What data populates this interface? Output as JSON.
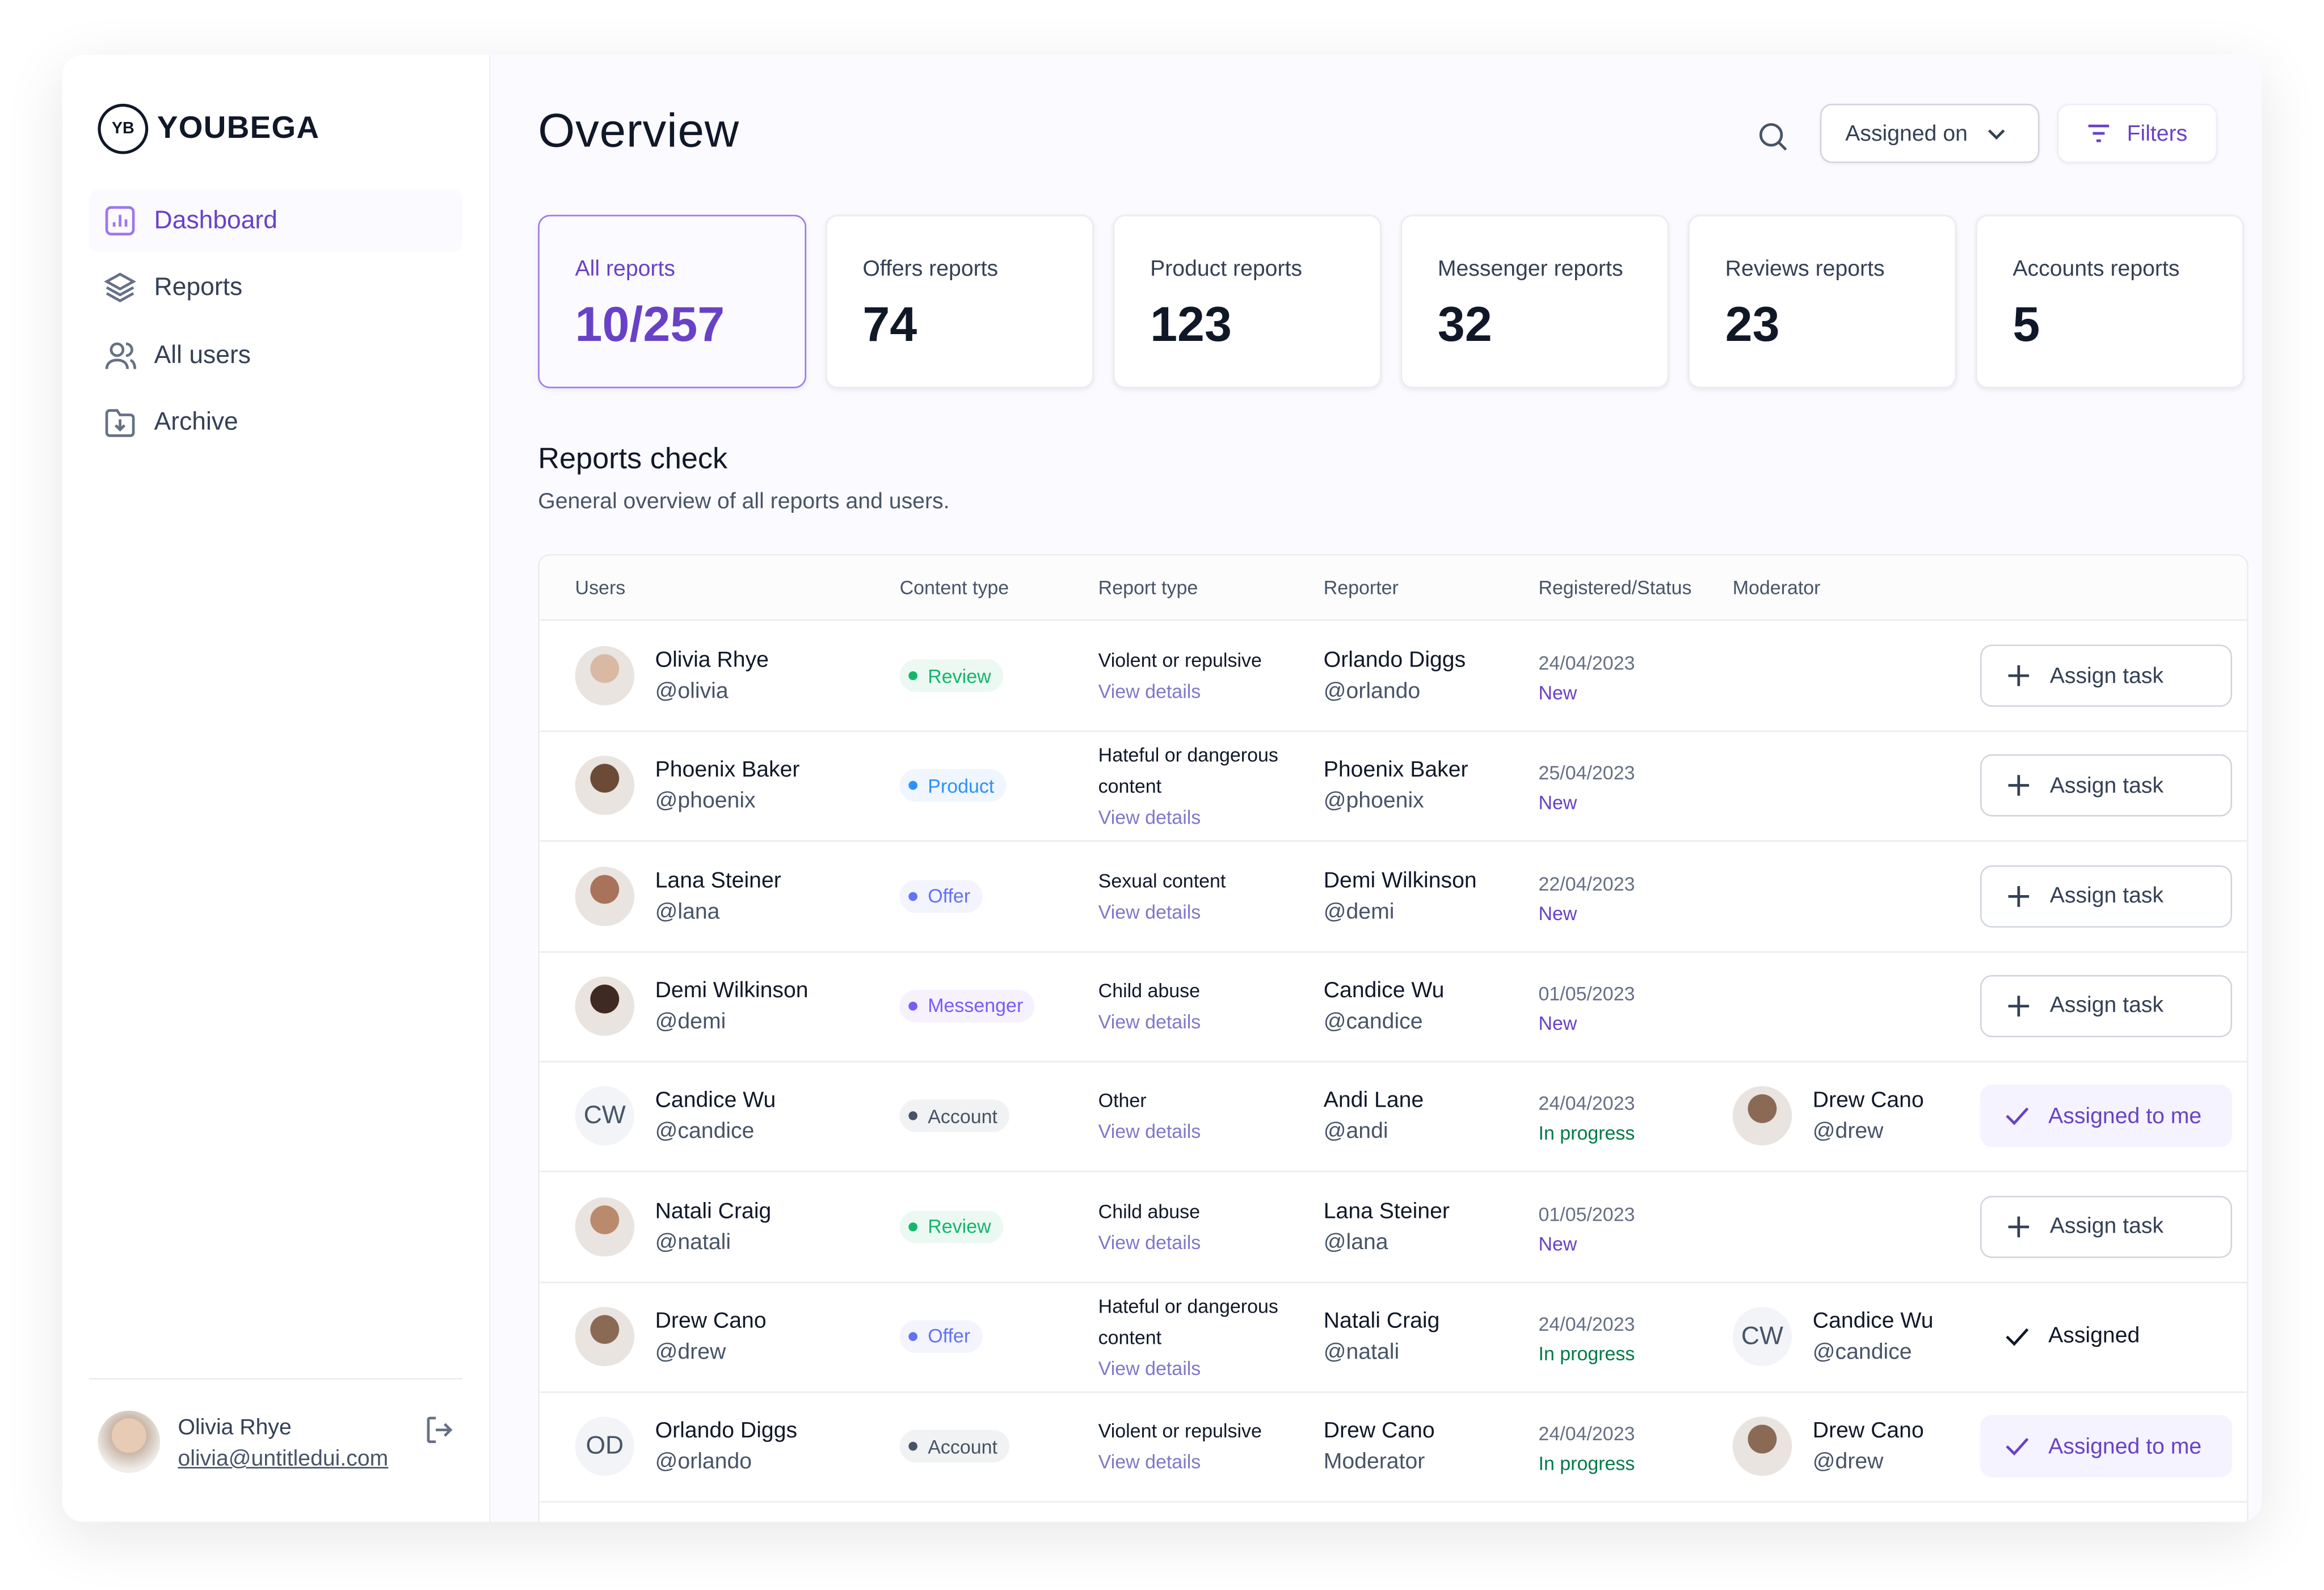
{
  "brand": {
    "logo": "YB",
    "name": "YOUBEGA"
  },
  "nav": [
    "Dashboard",
    "Reports",
    "All users",
    "Archive"
  ],
  "user": {
    "name": "Olivia Rhye",
    "email": "olivia@untitledui.com"
  },
  "header": {
    "title": "Overview",
    "sort": "Assigned on",
    "filters": "Filters"
  },
  "stats": [
    {
      "label": "All reports",
      "value": "10/257"
    },
    {
      "label": "Offers reports",
      "value": "74"
    },
    {
      "label": "Product reports",
      "value": "123"
    },
    {
      "label": "Messenger reports",
      "value": "32"
    },
    {
      "label": "Reviews reports",
      "value": "23"
    },
    {
      "label": "Accounts reports",
      "value": "5"
    }
  ],
  "section": {
    "title": "Reports check",
    "subtitle": "General overview of all reports and users."
  },
  "table": {
    "columns": [
      "Users",
      "Content type",
      "Report type",
      "Reporter",
      "Registered/Status",
      "Moderator"
    ],
    "rows": [
      {
        "name": "Olivia Rhye",
        "handle": "@olivia",
        "content_type": "Review",
        "badge_color": "#12b76a",
        "report_type": "Violent or repulsive",
        "link": "View details",
        "reporter": "Orlando Diggs",
        "reporter_handle": "@orlando",
        "date": "24/04/2023",
        "status": "New",
        "status_color": "#6941c6",
        "moderator": null,
        "action": "Assign task"
      },
      {
        "name": "Phoenix Baker",
        "handle": "@phoenix",
        "content_type": "Product",
        "badge_color": "#2e90fa",
        "report_type": "Hateful or dangerous content",
        "link": "View details",
        "reporter": "Phoenix Baker",
        "reporter_handle": "@phoenix",
        "date": "25/04/2023",
        "status": "New",
        "status_color": "#6941c6",
        "moderator": null,
        "action": "Assign task"
      },
      {
        "name": "Lana Steiner",
        "handle": "@lana",
        "content_type": "Offer",
        "badge_color": "#6172f3",
        "report_type": "Sexual content",
        "link": "View details",
        "reporter": "Demi Wilkinson",
        "reporter_handle": "@demi",
        "date": "22/04/2023",
        "status": "New",
        "status_color": "#6941c6",
        "moderator": null,
        "action": "Assign task"
      },
      {
        "name": "Demi Wilkinson",
        "handle": "@demi",
        "content_type": "Messenger",
        "badge_color": "#7a5af8",
        "report_type": "Child abuse",
        "link": "View details",
        "reporter": "Candice Wu",
        "reporter_handle": "@candice",
        "date": "01/05/2023",
        "status": "New",
        "status_color": "#6941c6",
        "moderator": null,
        "action": "Assign task"
      },
      {
        "initials": "CW",
        "name": "Candice Wu",
        "handle": "@candice",
        "content_type": "Account",
        "badge_color": "#475467",
        "report_type": "Other",
        "link": "View details",
        "reporter": "Andi Lane",
        "reporter_handle": "@andi",
        "date": "24/04/2023",
        "status": "In progress",
        "status_color": "#027a48",
        "moderator": {
          "name": "Drew Cano",
          "handle": "@drew"
        },
        "action": "Assigned to me"
      },
      {
        "name": "Natali Craig",
        "handle": "@natali",
        "content_type": "Review",
        "badge_color": "#12b76a",
        "report_type": "Child abuse",
        "link": "View details",
        "reporter": "Lana Steiner",
        "reporter_handle": "@lana",
        "date": "01/05/2023",
        "status": "New",
        "status_color": "#6941c6",
        "moderator": null,
        "action": "Assign task"
      },
      {
        "name": "Drew Cano",
        "handle": "@drew",
        "content_type": "Offer",
        "badge_color": "#6172f3",
        "report_type": "Hateful or dangerous content",
        "link": "View details",
        "reporter": "Natali Craig",
        "reporter_handle": "@natali",
        "date": "24/04/2023",
        "status": "In progress",
        "status_color": "#027a48",
        "moderator": {
          "initials": "CW",
          "name": "Candice Wu",
          "handle": "@candice"
        },
        "action": "Assigned"
      },
      {
        "initials": "OD",
        "name": "Orlando Diggs",
        "handle": "@orlando",
        "content_type": "Account",
        "badge_color": "#475467",
        "report_type": "Violent or repulsive",
        "link": "View details",
        "reporter": "Drew Cano",
        "reporter_handle": "Moderator",
        "date": "24/04/2023",
        "status": "In progress",
        "status_color": "#027a48",
        "moderator": {
          "name": "Drew Cano",
          "handle": "@drew"
        },
        "action": "Assigned to me"
      }
    ]
  }
}
